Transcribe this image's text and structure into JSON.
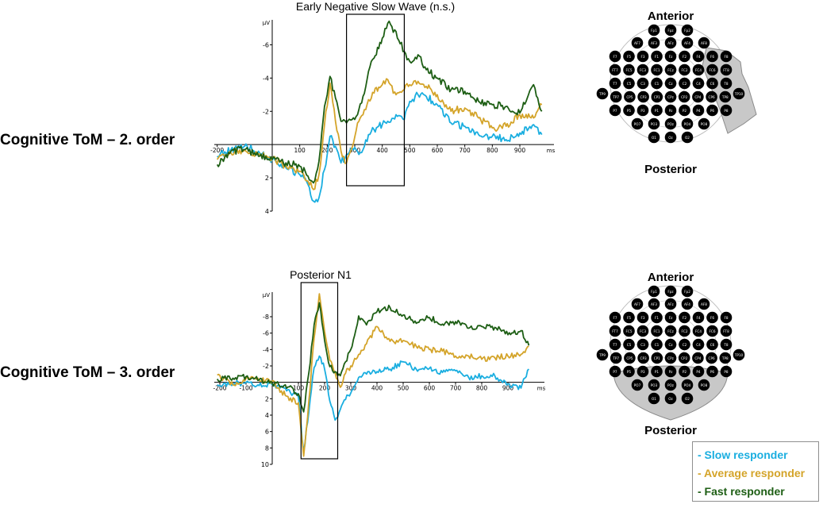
{
  "rows": [
    {
      "label": "Cognitive ToM – 2. order"
    },
    {
      "label": "Cognitive ToM – 3. order"
    }
  ],
  "chart_data": [
    {
      "type": "line",
      "title": "Early Negative Slow Wave (n.s.)",
      "xlabel": "ms",
      "ylabel": "µV",
      "y_inverted": true,
      "xlim": [
        -200,
        980
      ],
      "ylim": [
        4,
        -7.5
      ],
      "x_ticks": [
        -200,
        100,
        200,
        300,
        400,
        500,
        600,
        700,
        800,
        900
      ],
      "y_ticks": [
        -6,
        -4,
        -2,
        2,
        4
      ],
      "highlight_window": {
        "x": [
          270,
          480
        ]
      },
      "x": [
        -200,
        -150,
        -100,
        -50,
        0,
        50,
        100,
        130,
        150,
        170,
        190,
        210,
        230,
        250,
        270,
        290,
        310,
        330,
        350,
        370,
        400,
        420,
        450,
        480,
        500,
        530,
        560,
        600,
        650,
        700,
        750,
        800,
        850,
        900,
        950,
        980
      ],
      "series": [
        {
          "name": "Slow responder",
          "color": "#1aaee0",
          "values": [
            0.7,
            0.3,
            0.1,
            0.4,
            0.9,
            1.4,
            1.8,
            2.4,
            3.4,
            3.2,
            1.5,
            -0.5,
            0.1,
            1.1,
            0.6,
            0.2,
            0.4,
            0.3,
            -0.6,
            -0.9,
            -1.2,
            -1.4,
            -1.8,
            -1.5,
            -2.6,
            -3.0,
            -2.9,
            -2.4,
            -1.3,
            -1.1,
            -0.6,
            -0.5,
            -0.3,
            -0.7,
            -1.2,
            -0.6
          ]
        },
        {
          "name": "Average responder",
          "color": "#d4a42a",
          "values": [
            0.9,
            0.5,
            0.3,
            0.6,
            0.8,
            1.3,
            1.6,
            2.2,
            2.7,
            1.8,
            -1.2,
            -3.7,
            -1.4,
            0.4,
            1.1,
            0.2,
            -1.3,
            -1.8,
            -2.7,
            -3.1,
            -3.6,
            -3.9,
            -3.0,
            -3.3,
            -3.6,
            -3.8,
            -3.5,
            -3.0,
            -2.0,
            -2.2,
            -1.6,
            -1.0,
            -1.1,
            -1.8,
            -1.6,
            -2.4
          ]
        },
        {
          "name": "Fast responder",
          "color": "#1d5e14",
          "values": [
            1.2,
            0.4,
            0.3,
            0.7,
            0.9,
            1.1,
            1.3,
            1.9,
            2.3,
            1.0,
            -2.3,
            -4.1,
            -2.8,
            -1.4,
            -1.3,
            -1.5,
            -1.8,
            -2.9,
            -4.4,
            -5.2,
            -6.4,
            -7.3,
            -6.8,
            -5.6,
            -5.0,
            -5.4,
            -4.5,
            -4.0,
            -3.3,
            -3.2,
            -2.6,
            -2.4,
            -2.3,
            -1.9,
            -3.6,
            -2.0
          ]
        }
      ]
    },
    {
      "type": "line",
      "title": "Posterior N1",
      "xlabel": "ms",
      "ylabel": "µV",
      "y_inverted": true,
      "xlim": [
        -210,
        980
      ],
      "ylim": [
        10,
        -11
      ],
      "x_ticks": [
        -200,
        -100,
        100,
        200,
        300,
        400,
        500,
        600,
        700,
        800,
        900
      ],
      "y_ticks": [
        -8,
        -6,
        -4,
        -2,
        2,
        4,
        6,
        8,
        10
      ],
      "highlight_window": {
        "x": [
          110,
          250
        ]
      },
      "x": [
        -210,
        -150,
        -100,
        -50,
        0,
        50,
        100,
        120,
        140,
        160,
        180,
        200,
        220,
        240,
        260,
        280,
        300,
        330,
        360,
        400,
        450,
        500,
        550,
        600,
        650,
        700,
        750,
        800,
        850,
        900,
        950,
        980
      ],
      "series": [
        {
          "name": "Slow responder",
          "color": "#1aaee0",
          "values": [
            0.3,
            0.2,
            0.0,
            0.4,
            0.3,
            0.7,
            1.8,
            8.4,
            3.6,
            -1.8,
            -3.2,
            -1.6,
            2.3,
            4.6,
            3.3,
            2.1,
            1.3,
            -0.6,
            -1.0,
            -1.3,
            -1.6,
            -2.5,
            -1.6,
            -1.7,
            -1.2,
            -1.4,
            -0.6,
            -0.8,
            -0.8,
            0.2,
            0.7,
            -1.6
          ]
        },
        {
          "name": "Average responder",
          "color": "#d4a42a",
          "values": [
            -0.9,
            0.3,
            -0.5,
            -0.2,
            -0.2,
            1.6,
            2.5,
            9.0,
            2.2,
            -5.4,
            -10.8,
            -6.2,
            -2.7,
            -1.2,
            0.6,
            -1.1,
            -2.0,
            -3.4,
            -4.7,
            -6.8,
            -5.0,
            -5.1,
            -4.4,
            -4.0,
            -3.8,
            -3.2,
            -3.2,
            -2.8,
            -3.0,
            -3.2,
            -3.4,
            -4.4
          ]
        },
        {
          "name": "Fast responder",
          "color": "#1d5e14",
          "values": [
            -0.4,
            -0.5,
            -0.7,
            -0.3,
            0.1,
            0.3,
            1.4,
            3.6,
            -1.2,
            -7.0,
            -9.7,
            -5.1,
            -1.9,
            -1.3,
            -0.8,
            -2.5,
            -4.0,
            -8.1,
            -7.0,
            -8.6,
            -9.1,
            -8.2,
            -7.2,
            -7.9,
            -7.1,
            -7.4,
            -6.6,
            -6.8,
            -6.7,
            -5.8,
            -6.3,
            -4.5
          ]
        }
      ]
    }
  ],
  "scalp_maps": [
    {
      "top_label": "Anterior",
      "bottom_label": "Posterior",
      "highlight": "right-fronto-temporal"
    },
    {
      "top_label": "Anterior",
      "bottom_label": "Posterior",
      "highlight": "posterior"
    }
  ],
  "electrode_rows": [
    [
      "Fp1",
      "Fpz",
      "Fp2"
    ],
    [
      "AF7",
      "AF3",
      "AFz",
      "AF4",
      "AF8"
    ],
    [
      "F7",
      "F5",
      "F3",
      "F1",
      "Fz",
      "F2",
      "F4",
      "F6",
      "F8"
    ],
    [
      "FT7",
      "FC5",
      "FC3",
      "FC1",
      "FCz",
      "FC2",
      "FC4",
      "FC6",
      "FT8"
    ],
    [
      "T7",
      "C5",
      "C3",
      "C1",
      "Cz",
      "C2",
      "C4",
      "C6",
      "T8"
    ],
    [
      "TP9",
      "TP7",
      "CP5",
      "CP3",
      "CP1",
      "CPz",
      "CP2",
      "CP4",
      "CP6",
      "TP8",
      "TP10"
    ],
    [
      "P7",
      "P5",
      "P3",
      "P1",
      "Pz",
      "P2",
      "P4",
      "P6",
      "P8"
    ],
    [
      "PO7",
      "PO3",
      "POz",
      "PO4",
      "PO8"
    ],
    [
      "O1",
      "Oz",
      "O2"
    ]
  ],
  "legend": [
    {
      "label": "- Slow responder",
      "color": "#1aaee0"
    },
    {
      "label": "- Average responder",
      "color": "#d4a42a"
    },
    {
      "label": "- Fast responder",
      "color": "#1d5e14"
    }
  ]
}
